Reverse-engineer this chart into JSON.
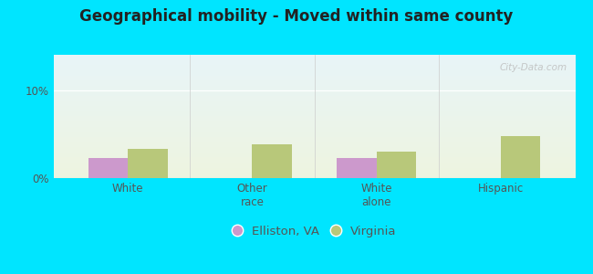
{
  "title": "Geographical mobility - Moved within same county",
  "categories": [
    "White",
    "Other\nrace",
    "White\nalone",
    "Hispanic"
  ],
  "elliston_va": [
    2.3,
    0,
    2.3,
    0
  ],
  "virginia": [
    3.3,
    3.8,
    3.0,
    4.8
  ],
  "elliston_color": "#cc99cc",
  "virginia_color": "#b8c87a",
  "background": "#00e5ff",
  "plot_bg_top": "#e8f4f8",
  "plot_bg_bottom": "#eef5e0",
  "ylim": [
    0,
    14
  ],
  "yticks": [
    0,
    10
  ],
  "ytick_labels": [
    "0%",
    "10%"
  ],
  "bar_width": 0.32,
  "title_fontsize": 12,
  "tick_fontsize": 8.5,
  "legend_fontsize": 9.5,
  "watermark": "City-Data.com"
}
